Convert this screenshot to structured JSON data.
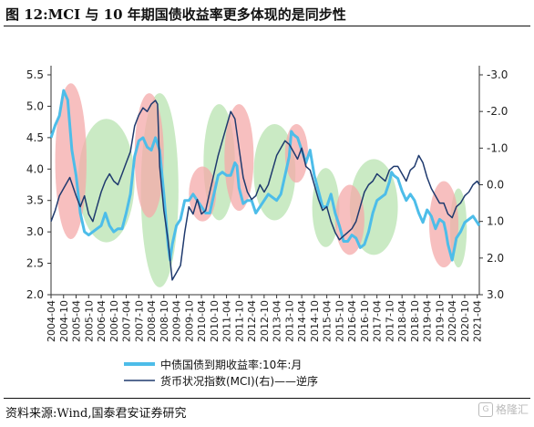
{
  "figure_title": "图 12:MCI 与 10 年期国债收益率更多体现的是同步性",
  "source_note": "资料来源:Wind,国泰君安证券研究",
  "watermark": {
    "text": "格隆汇",
    "icon": "g-logo-icon"
  },
  "colors": {
    "yield": "#4dbde9",
    "mci": "#1f3a6e",
    "red_band": "#f4aaaa",
    "green_band": "#b8e3b0"
  },
  "chart_data": {
    "type": "line",
    "x_ticks": [
      "2004-04",
      "2004-10",
      "2005-04",
      "2005-10",
      "2006-04",
      "2006-10",
      "2007-04",
      "2007-10",
      "2008-04",
      "2008-10",
      "2009-04",
      "2009-10",
      "2010-04",
      "2010-10",
      "2011-04",
      "2011-10",
      "2012-04",
      "2012-10",
      "2013-04",
      "2013-10",
      "2014-04",
      "2014-10",
      "2015-04",
      "2015-10",
      "2016-04",
      "2016-10",
      "2017-04",
      "2017-10",
      "2018-04",
      "2018-10",
      "2019-04",
      "2019-10",
      "2020-04",
      "2020-10",
      "2021-04"
    ],
    "x_range": [
      "2004-04",
      "2021-05"
    ],
    "left_axis": {
      "ylim": [
        2.0,
        5.5
      ],
      "ticks": [
        "2.0",
        "2.5",
        "3.0",
        "3.5",
        "4.0",
        "4.5",
        "5.0",
        "5.5"
      ]
    },
    "right_axis": {
      "ylim": [
        3.0,
        -3.0
      ],
      "reversed": true,
      "ticks": [
        "-3.0",
        "-2.0",
        "-1.0",
        "0.0",
        "1.0",
        "2.0",
        "3.0"
      ]
    },
    "series": [
      {
        "name": "中债国债到期收益率:10年:月",
        "axis": "left",
        "points": [
          [
            "2004-04",
            4.5
          ],
          [
            "2004-06",
            4.7
          ],
          [
            "2004-08",
            4.85
          ],
          [
            "2004-10",
            5.25
          ],
          [
            "2004-12",
            5.1
          ],
          [
            "2005-02",
            4.3
          ],
          [
            "2005-04",
            3.9
          ],
          [
            "2005-06",
            3.3
          ],
          [
            "2005-08",
            3.0
          ],
          [
            "2005-10",
            2.95
          ],
          [
            "2005-12",
            3.0
          ],
          [
            "2006-02",
            3.05
          ],
          [
            "2006-04",
            3.1
          ],
          [
            "2006-06",
            3.3
          ],
          [
            "2006-08",
            3.1
          ],
          [
            "2006-10",
            3.0
          ],
          [
            "2006-12",
            3.05
          ],
          [
            "2007-02",
            3.05
          ],
          [
            "2007-04",
            3.3
          ],
          [
            "2007-06",
            3.6
          ],
          [
            "2007-08",
            4.2
          ],
          [
            "2007-10",
            4.45
          ],
          [
            "2007-12",
            4.5
          ],
          [
            "2008-02",
            4.35
          ],
          [
            "2008-04",
            4.3
          ],
          [
            "2008-06",
            4.5
          ],
          [
            "2008-08",
            4.3
          ],
          [
            "2008-10",
            3.6
          ],
          [
            "2008-12",
            2.8
          ],
          [
            "2009-01",
            2.55
          ],
          [
            "2009-02",
            2.8
          ],
          [
            "2009-04",
            3.1
          ],
          [
            "2009-06",
            3.2
          ],
          [
            "2009-08",
            3.5
          ],
          [
            "2009-10",
            3.5
          ],
          [
            "2009-12",
            3.6
          ],
          [
            "2010-02",
            3.5
          ],
          [
            "2010-04",
            3.4
          ],
          [
            "2010-06",
            3.3
          ],
          [
            "2010-08",
            3.3
          ],
          [
            "2010-10",
            3.6
          ],
          [
            "2010-12",
            3.9
          ],
          [
            "2011-02",
            3.95
          ],
          [
            "2011-04",
            3.9
          ],
          [
            "2011-06",
            3.9
          ],
          [
            "2011-08",
            4.1
          ],
          [
            "2011-09",
            4.05
          ],
          [
            "2011-10",
            3.7
          ],
          [
            "2011-12",
            3.45
          ],
          [
            "2012-02",
            3.5
          ],
          [
            "2012-04",
            3.5
          ],
          [
            "2012-06",
            3.3
          ],
          [
            "2012-08",
            3.4
          ],
          [
            "2012-10",
            3.5
          ],
          [
            "2012-12",
            3.6
          ],
          [
            "2013-02",
            3.55
          ],
          [
            "2013-04",
            3.5
          ],
          [
            "2013-06",
            3.6
          ],
          [
            "2013-08",
            3.9
          ],
          [
            "2013-10",
            4.2
          ],
          [
            "2013-11",
            4.6
          ],
          [
            "2013-12",
            4.55
          ],
          [
            "2014-02",
            4.5
          ],
          [
            "2014-04",
            4.3
          ],
          [
            "2014-06",
            4.1
          ],
          [
            "2014-08",
            4.3
          ],
          [
            "2014-10",
            3.9
          ],
          [
            "2014-12",
            3.65
          ],
          [
            "2015-02",
            3.4
          ],
          [
            "2015-04",
            3.4
          ],
          [
            "2015-06",
            3.6
          ],
          [
            "2015-08",
            3.3
          ],
          [
            "2015-10",
            3.1
          ],
          [
            "2015-12",
            2.85
          ],
          [
            "2016-02",
            2.85
          ],
          [
            "2016-04",
            2.95
          ],
          [
            "2016-06",
            2.9
          ],
          [
            "2016-08",
            2.75
          ],
          [
            "2016-10",
            2.8
          ],
          [
            "2016-12",
            3.0
          ],
          [
            "2017-02",
            3.3
          ],
          [
            "2017-04",
            3.5
          ],
          [
            "2017-06",
            3.55
          ],
          [
            "2017-08",
            3.6
          ],
          [
            "2017-10",
            3.8
          ],
          [
            "2017-11",
            3.95
          ],
          [
            "2017-12",
            3.9
          ],
          [
            "2018-02",
            3.85
          ],
          [
            "2018-04",
            3.65
          ],
          [
            "2018-06",
            3.5
          ],
          [
            "2018-08",
            3.6
          ],
          [
            "2018-10",
            3.5
          ],
          [
            "2018-12",
            3.3
          ],
          [
            "2019-02",
            3.15
          ],
          [
            "2019-04",
            3.35
          ],
          [
            "2019-06",
            3.25
          ],
          [
            "2019-08",
            3.05
          ],
          [
            "2019-10",
            3.2
          ],
          [
            "2019-12",
            3.15
          ],
          [
            "2020-01",
            3.0
          ],
          [
            "2020-02",
            2.8
          ],
          [
            "2020-04",
            2.55
          ],
          [
            "2020-06",
            2.9
          ],
          [
            "2020-08",
            3.0
          ],
          [
            "2020-10",
            3.15
          ],
          [
            "2020-12",
            3.2
          ],
          [
            "2021-02",
            3.25
          ],
          [
            "2021-04",
            3.15
          ],
          [
            "2021-05",
            3.1
          ]
        ]
      },
      {
        "name": "货币状况指数(MCI)(右)——逆序",
        "axis": "right",
        "points": [
          [
            "2004-04",
            1.0
          ],
          [
            "2004-06",
            0.7
          ],
          [
            "2004-08",
            0.3
          ],
          [
            "2004-10",
            0.1
          ],
          [
            "2005-01",
            -0.2
          ],
          [
            "2005-04",
            0.3
          ],
          [
            "2005-06",
            0.6
          ],
          [
            "2005-08",
            0.3
          ],
          [
            "2005-10",
            0.8
          ],
          [
            "2005-12",
            1.0
          ],
          [
            "2006-02",
            0.6
          ],
          [
            "2006-04",
            0.2
          ],
          [
            "2006-06",
            -0.1
          ],
          [
            "2006-08",
            -0.3
          ],
          [
            "2006-10",
            -0.1
          ],
          [
            "2006-12",
            0.0
          ],
          [
            "2007-02",
            -0.3
          ],
          [
            "2007-04",
            -0.6
          ],
          [
            "2007-06",
            -0.9
          ],
          [
            "2007-08",
            -1.6
          ],
          [
            "2007-10",
            -1.9
          ],
          [
            "2007-12",
            -2.1
          ],
          [
            "2008-02",
            -2.0
          ],
          [
            "2008-04",
            -2.2
          ],
          [
            "2008-06",
            -2.3
          ],
          [
            "2008-07",
            -2.2
          ],
          [
            "2008-08",
            -0.5
          ],
          [
            "2008-10",
            0.7
          ],
          [
            "2008-12",
            1.5
          ],
          [
            "2009-02",
            2.6
          ],
          [
            "2009-04",
            2.4
          ],
          [
            "2009-06",
            2.2
          ],
          [
            "2009-08",
            1.3
          ],
          [
            "2009-10",
            0.6
          ],
          [
            "2009-12",
            0.8
          ],
          [
            "2010-02",
            0.4
          ],
          [
            "2010-04",
            0.8
          ],
          [
            "2010-06",
            0.7
          ],
          [
            "2010-08",
            0.2
          ],
          [
            "2010-10",
            -0.3
          ],
          [
            "2010-12",
            -0.8
          ],
          [
            "2011-02",
            -1.2
          ],
          [
            "2011-04",
            -1.6
          ],
          [
            "2011-06",
            -2.0
          ],
          [
            "2011-08",
            -1.8
          ],
          [
            "2011-10",
            -1.0
          ],
          [
            "2011-12",
            -0.2
          ],
          [
            "2012-02",
            0.2
          ],
          [
            "2012-04",
            0.4
          ],
          [
            "2012-06",
            0.3
          ],
          [
            "2012-08",
            0.0
          ],
          [
            "2012-10",
            0.2
          ],
          [
            "2012-12",
            0.0
          ],
          [
            "2013-02",
            -0.4
          ],
          [
            "2013-04",
            -0.8
          ],
          [
            "2013-06",
            -1.0
          ],
          [
            "2013-08",
            -1.2
          ],
          [
            "2013-10",
            -1.1
          ],
          [
            "2013-12",
            -0.9
          ],
          [
            "2014-02",
            -0.7
          ],
          [
            "2014-04",
            -1.0
          ],
          [
            "2014-06",
            -0.5
          ],
          [
            "2014-08",
            -0.4
          ],
          [
            "2014-10",
            0.0
          ],
          [
            "2014-12",
            0.4
          ],
          [
            "2015-02",
            0.7
          ],
          [
            "2015-04",
            0.6
          ],
          [
            "2015-06",
            1.0
          ],
          [
            "2015-08",
            1.3
          ],
          [
            "2015-10",
            1.5
          ],
          [
            "2015-12",
            1.4
          ],
          [
            "2016-02",
            1.3
          ],
          [
            "2016-04",
            1.2
          ],
          [
            "2016-06",
            1.0
          ],
          [
            "2016-08",
            0.6
          ],
          [
            "2016-10",
            0.2
          ],
          [
            "2016-12",
            0.0
          ],
          [
            "2017-02",
            -0.1
          ],
          [
            "2017-04",
            -0.3
          ],
          [
            "2017-06",
            -0.2
          ],
          [
            "2017-08",
            -0.1
          ],
          [
            "2017-10",
            -0.4
          ],
          [
            "2017-12",
            -0.5
          ],
          [
            "2018-02",
            -0.5
          ],
          [
            "2018-04",
            -0.3
          ],
          [
            "2018-06",
            -0.1
          ],
          [
            "2018-08",
            -0.4
          ],
          [
            "2018-10",
            -0.5
          ],
          [
            "2018-12",
            -0.8
          ],
          [
            "2019-02",
            -0.6
          ],
          [
            "2019-04",
            -0.2
          ],
          [
            "2019-06",
            0.1
          ],
          [
            "2019-08",
            0.3
          ],
          [
            "2019-10",
            0.5
          ],
          [
            "2019-12",
            0.5
          ],
          [
            "2020-02",
            0.8
          ],
          [
            "2020-04",
            0.9
          ],
          [
            "2020-06",
            0.6
          ],
          [
            "2020-08",
            0.5
          ],
          [
            "2020-10",
            0.3
          ],
          [
            "2020-12",
            0.2
          ],
          [
            "2021-02",
            0.0
          ],
          [
            "2021-04",
            -0.1
          ],
          [
            "2021-05",
            0.0
          ]
        ]
      }
    ],
    "bands": {
      "red": [
        {
          "start": "2004-06",
          "end": "2005-09"
        },
        {
          "start": "2007-08",
          "end": "2008-10"
        },
        {
          "start": "2009-10",
          "end": "2010-11"
        },
        {
          "start": "2011-03",
          "end": "2012-05"
        },
        {
          "start": "2013-08",
          "end": "2014-07"
        },
        {
          "start": "2015-08",
          "end": "2016-10"
        },
        {
          "start": "2019-05",
          "end": "2020-07"
        }
      ],
      "green": [
        {
          "start": "2005-05",
          "end": "2007-08"
        },
        {
          "start": "2007-11",
          "end": "2009-05"
        },
        {
          "start": "2010-05",
          "end": "2011-08"
        },
        {
          "start": "2012-05",
          "end": "2014-01"
        },
        {
          "start": "2014-09",
          "end": "2015-10"
        },
        {
          "start": "2016-03",
          "end": "2018-02"
        },
        {
          "start": "2020-03",
          "end": "2020-11"
        }
      ]
    }
  }
}
